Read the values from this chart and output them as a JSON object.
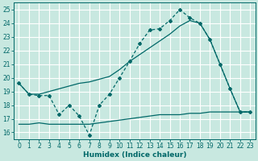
{
  "xlabel": "Humidex (Indice chaleur)",
  "background_color": "#c8e8e0",
  "grid_color": "#ffffff",
  "line_color": "#006868",
  "xlim": [
    -0.5,
    23.5
  ],
  "ylim": [
    15.5,
    25.5
  ],
  "yticks": [
    16,
    17,
    18,
    19,
    20,
    21,
    22,
    23,
    24,
    25
  ],
  "xticks": [
    0,
    1,
    2,
    3,
    4,
    5,
    6,
    7,
    8,
    9,
    10,
    11,
    12,
    13,
    14,
    15,
    16,
    17,
    18,
    19,
    20,
    21,
    22,
    23
  ],
  "line1_x": [
    0,
    1,
    2,
    3,
    4,
    5,
    6,
    7,
    8,
    9,
    10,
    11,
    12,
    13,
    14,
    15,
    16,
    17,
    18,
    19,
    20,
    21,
    22,
    23
  ],
  "line1_y": [
    19.6,
    18.8,
    18.7,
    18.7,
    17.3,
    18.0,
    17.2,
    15.8,
    18.0,
    18.8,
    20.0,
    21.2,
    22.5,
    23.5,
    23.6,
    24.2,
    25.0,
    24.4,
    24.0,
    22.8,
    21.0,
    19.2,
    17.5,
    17.5
  ],
  "line2_x": [
    0,
    1,
    2,
    3,
    4,
    5,
    6,
    7,
    8,
    9,
    10,
    11,
    12,
    13,
    14,
    15,
    16,
    17,
    18,
    19,
    20,
    21,
    22,
    23
  ],
  "line2_y": [
    19.6,
    18.8,
    18.8,
    19.0,
    19.2,
    19.4,
    19.6,
    19.7,
    19.9,
    20.1,
    20.6,
    21.2,
    21.7,
    22.2,
    22.7,
    23.2,
    23.8,
    24.2,
    24.0,
    22.8,
    21.0,
    19.2,
    17.5,
    17.5
  ],
  "line3_x": [
    0,
    1,
    2,
    3,
    4,
    5,
    6,
    7,
    8,
    9,
    10,
    11,
    12,
    13,
    14,
    15,
    16,
    17,
    18,
    19,
    20,
    21,
    22,
    23
  ],
  "line3_y": [
    16.6,
    16.6,
    16.7,
    16.6,
    16.6,
    16.6,
    16.6,
    16.6,
    16.7,
    16.8,
    16.9,
    17.0,
    17.1,
    17.2,
    17.3,
    17.3,
    17.3,
    17.4,
    17.4,
    17.5,
    17.5,
    17.5,
    17.5,
    17.5
  ],
  "tick_labelsize": 5.5,
  "xlabel_fontsize": 6.5
}
